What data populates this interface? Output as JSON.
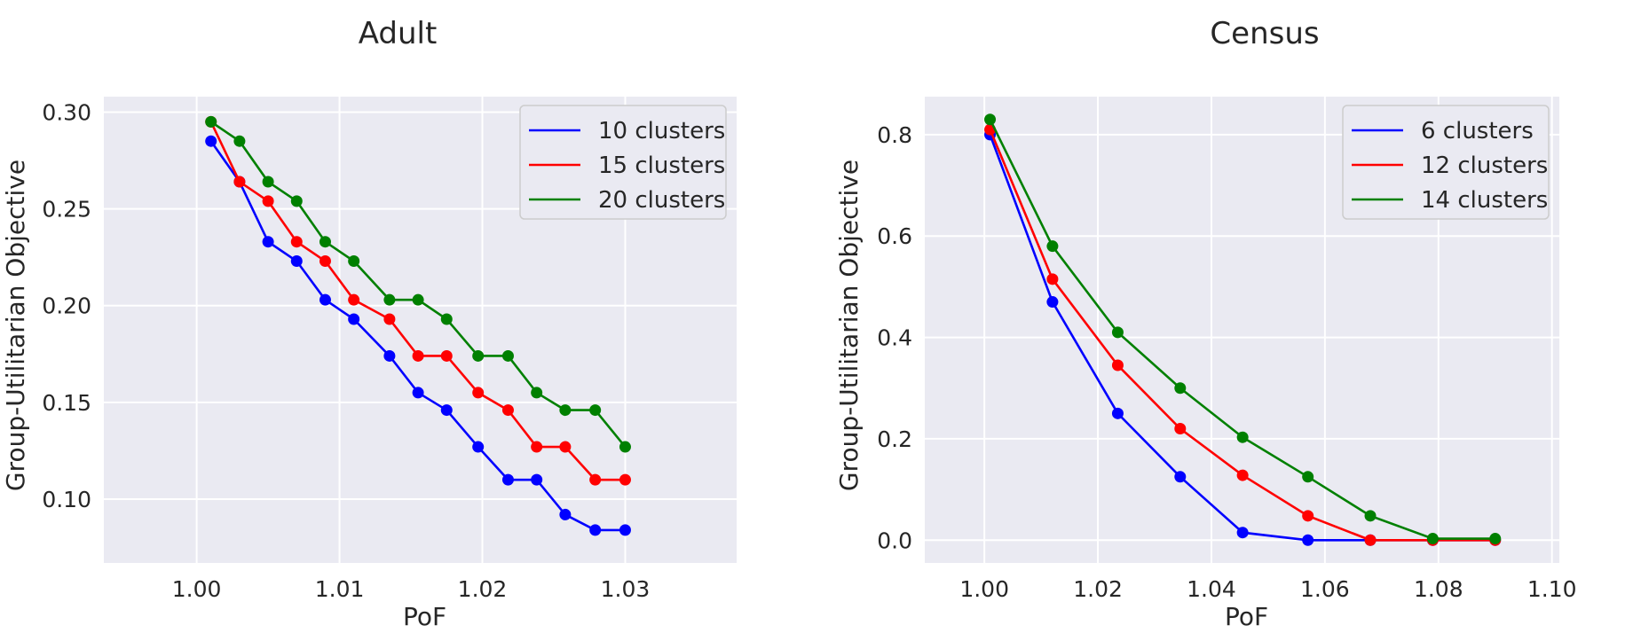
{
  "colors": {
    "plot_background": "#EAEAF2",
    "grid": "#FFFFFF",
    "blue": "#0000FF",
    "red": "#FF0000",
    "green": "#008000",
    "legend_background": "#EAEAF2",
    "legend_border": "#CCCCCC"
  },
  "chart_data": [
    {
      "type": "line",
      "title": "Adult",
      "xlabel": "PoF",
      "ylabel": "Group-Utilitarian Objective",
      "xlim": [
        0.9935,
        1.0378
      ],
      "ylim": [
        0.067,
        0.308
      ],
      "xticks": [
        1.0,
        1.01,
        1.02,
        1.03
      ],
      "xtick_labels": [
        "1.00",
        "1.01",
        "1.02",
        "1.03"
      ],
      "yticks": [
        0.1,
        0.15,
        0.2,
        0.25,
        0.3
      ],
      "ytick_labels": [
        "0.10",
        "0.15",
        "0.20",
        "0.25",
        "0.30"
      ],
      "grid": true,
      "legend": "top-right",
      "x": [
        1.001,
        1.003,
        1.005,
        1.007,
        1.009,
        1.011,
        1.0135,
        1.0155,
        1.0175,
        1.0197,
        1.0218,
        1.0238,
        1.0258,
        1.0279,
        1.03
      ],
      "series": [
        {
          "name": "10 clusters",
          "color": "blue",
          "values": [
            0.285,
            0.264,
            0.233,
            0.223,
            0.203,
            0.193,
            0.174,
            0.155,
            0.146,
            0.127,
            0.11,
            0.11,
            0.092,
            0.084,
            0.084
          ]
        },
        {
          "name": "15 clusters",
          "color": "red",
          "values": [
            0.295,
            0.264,
            0.254,
            0.233,
            0.223,
            0.203,
            0.193,
            0.174,
            0.174,
            0.155,
            0.146,
            0.127,
            0.127,
            0.11,
            0.11
          ]
        },
        {
          "name": "20 clusters",
          "color": "green",
          "values": [
            0.295,
            0.285,
            0.264,
            0.254,
            0.233,
            0.223,
            0.203,
            0.203,
            0.193,
            0.174,
            0.174,
            0.155,
            0.146,
            0.146,
            0.127
          ]
        }
      ]
    },
    {
      "type": "line",
      "title": "Census",
      "xlabel": "PoF",
      "ylabel": "Group-Utilitarian Objective",
      "xlim": [
        0.9895,
        1.1013
      ],
      "ylim": [
        -0.045,
        0.875
      ],
      "xticks": [
        1.0,
        1.02,
        1.04,
        1.06,
        1.08,
        1.1
      ],
      "xtick_labels": [
        "1.00",
        "1.02",
        "1.04",
        "1.06",
        "1.08",
        "1.10"
      ],
      "yticks": [
        0.0,
        0.2,
        0.4,
        0.6,
        0.8
      ],
      "ytick_labels": [
        "0.0",
        "0.2",
        "0.4",
        "0.6",
        "0.8"
      ],
      "grid": true,
      "legend": "top-right",
      "x": [
        1.001,
        1.012,
        1.0235,
        1.0345,
        1.0455,
        1.057,
        1.068,
        1.079,
        1.09
      ],
      "series": [
        {
          "name": "6 clusters",
          "color": "blue",
          "values": [
            0.8,
            0.47,
            0.25,
            0.125,
            0.015,
            0.0,
            0.0,
            0.0,
            0.0
          ]
        },
        {
          "name": "12 clusters",
          "color": "red",
          "values": [
            0.81,
            0.515,
            0.345,
            0.22,
            0.128,
            0.048,
            0.0,
            0.0,
            0.0
          ]
        },
        {
          "name": "14 clusters",
          "color": "green",
          "values": [
            0.83,
            0.58,
            0.41,
            0.3,
            0.203,
            0.125,
            0.048,
            0.003,
            0.003
          ]
        }
      ]
    }
  ]
}
